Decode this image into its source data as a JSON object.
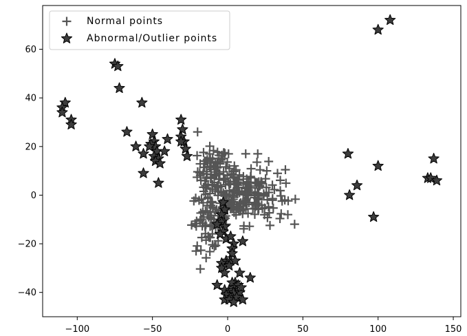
{
  "chart_data": {
    "type": "scatter",
    "title": "",
    "xlabel": "",
    "ylabel": "",
    "xlim": [
      -123,
      155
    ],
    "ylim": [
      -50,
      78
    ],
    "xticks": [
      -100,
      -50,
      0,
      50,
      100,
      150
    ],
    "yticks": [
      -40,
      -20,
      0,
      20,
      40,
      60
    ],
    "xtick_labels": [
      "−100",
      "−50",
      "0",
      "50",
      "100",
      "150"
    ],
    "ytick_labels": [
      "−40",
      "−20",
      "0",
      "20",
      "40",
      "60"
    ],
    "grid": false,
    "legend_position": "upper-left",
    "series": [
      {
        "name": "Normal points",
        "marker": "plus",
        "color": "#555555",
        "clusters": [
          {
            "center": [
              -10,
              10
            ],
            "spread": [
              5,
              5
            ],
            "count": 70
          },
          {
            "center": [
              5,
              2
            ],
            "spread": [
              7,
              6
            ],
            "count": 90
          },
          {
            "center": [
              20,
              0
            ],
            "spread": [
              9,
              6
            ],
            "count": 90
          },
          {
            "center": [
              -12,
              -10
            ],
            "spread": [
              6,
              6
            ],
            "count": 70
          },
          {
            "center": [
              0,
              -6
            ],
            "spread": [
              4,
              4
            ],
            "count": 20
          }
        ],
        "points": [
          [
            -20,
            26
          ],
          [
            12,
            17
          ],
          [
            20,
            17
          ],
          [
            -21,
            -23
          ],
          [
            40,
            -8
          ],
          [
            38,
            -2
          ],
          [
            26,
            10
          ]
        ]
      },
      {
        "name": "Abnormal/Outlier points",
        "marker": "star",
        "color": "#3c3c3c",
        "points": [
          [
            108,
            72
          ],
          [
            100,
            68
          ],
          [
            -75,
            54
          ],
          [
            -73,
            53
          ],
          [
            -72,
            44
          ],
          [
            -57,
            38
          ],
          [
            -108,
            38
          ],
          [
            -110,
            36
          ],
          [
            -110,
            34
          ],
          [
            -104,
            31
          ],
          [
            -104,
            29
          ],
          [
            -67,
            26
          ],
          [
            -31,
            31
          ],
          [
            -30,
            27
          ],
          [
            -31,
            24
          ],
          [
            -29,
            22
          ],
          [
            -31,
            22
          ],
          [
            -28,
            19
          ],
          [
            -27,
            16
          ],
          [
            -50,
            25
          ],
          [
            -49,
            22
          ],
          [
            -51,
            21
          ],
          [
            -48,
            20
          ],
          [
            -52,
            20
          ],
          [
            -47,
            18
          ],
          [
            -49,
            16
          ],
          [
            -46,
            15
          ],
          [
            -48,
            14
          ],
          [
            -45,
            13
          ],
          [
            -40,
            23
          ],
          [
            -42,
            18
          ],
          [
            -61,
            20
          ],
          [
            -56,
            17
          ],
          [
            -56,
            9
          ],
          [
            -46,
            5
          ],
          [
            80,
            17
          ],
          [
            100,
            12
          ],
          [
            86,
            4
          ],
          [
            81,
            0
          ],
          [
            97,
            -9
          ],
          [
            137,
            15
          ],
          [
            133,
            7
          ],
          [
            135,
            7
          ],
          [
            139,
            6
          ],
          [
            -3,
            -3
          ],
          [
            -2,
            -6
          ],
          [
            -4,
            -8
          ],
          [
            -4,
            -11
          ],
          [
            -7,
            -12
          ],
          [
            -2,
            -13
          ],
          [
            -3,
            -15
          ],
          [
            -5,
            -16
          ],
          [
            -1,
            -18
          ],
          [
            2,
            -17
          ],
          [
            4,
            -20
          ],
          [
            10,
            -19
          ],
          [
            3,
            -22
          ],
          [
            3,
            -24
          ],
          [
            -1,
            -27
          ],
          [
            2,
            -27
          ],
          [
            5,
            -27
          ],
          [
            -4,
            -28
          ],
          [
            1,
            -29
          ],
          [
            -4,
            -30
          ],
          [
            -2,
            -32
          ],
          [
            8,
            -32
          ],
          [
            5,
            -36
          ],
          [
            3,
            -36
          ],
          [
            15,
            -34
          ],
          [
            -7,
            -37
          ],
          [
            5,
            -38
          ],
          [
            1,
            -39
          ],
          [
            -2,
            -39
          ],
          [
            4,
            -40
          ],
          [
            8,
            -40
          ],
          [
            -1,
            -41
          ],
          [
            3,
            -42
          ],
          [
            6,
            -42
          ],
          [
            -2,
            -43
          ],
          [
            1,
            -43
          ],
          [
            4,
            -44
          ],
          [
            10,
            -43
          ],
          [
            7,
            -37
          ],
          [
            9,
            -38
          ]
        ]
      }
    ]
  }
}
